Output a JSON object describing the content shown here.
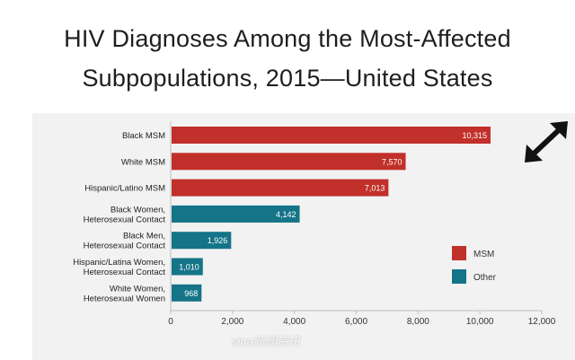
{
  "title_line1": "HIV Diagnoses Among the Most-Affected",
  "title_line2": "Subpopulations, 2015—United States",
  "colors": {
    "msm": "#c1302a",
    "other": "#157488",
    "panel": "#f2f2f2"
  },
  "icons": {
    "expand": "expand-arrows-icon"
  },
  "watermark": "sina新闻资讯",
  "chart_data": {
    "type": "bar",
    "orientation": "horizontal",
    "title": "HIV Diagnoses Among the Most-Affected Subpopulations, 2015—United States",
    "xlabel": "",
    "ylabel": "",
    "xlim": [
      0,
      12000
    ],
    "x_ticks": [
      0,
      2000,
      4000,
      6000,
      8000,
      10000,
      12000
    ],
    "x_tick_labels": [
      "0",
      "2,000",
      "4,000",
      "6,000",
      "8,000",
      "10,000",
      "12,000"
    ],
    "grid": false,
    "legend_position": "right",
    "legend": [
      {
        "name": "MSM",
        "color": "#c1302a"
      },
      {
        "name": "Other",
        "color": "#157488"
      }
    ],
    "bars": [
      {
        "category": [
          "Black MSM"
        ],
        "value": 10315,
        "label": "10,315",
        "group": "MSM"
      },
      {
        "category": [
          "White MSM"
        ],
        "value": 7570,
        "label": "7,570",
        "group": "MSM"
      },
      {
        "category": [
          "Hispanic/Latino MSM"
        ],
        "value": 7013,
        "label": "7,013",
        "group": "MSM"
      },
      {
        "category": [
          "Black Women,",
          "Heterosexual Contact"
        ],
        "value": 4142,
        "label": "4,142",
        "group": "Other"
      },
      {
        "category": [
          "Black Men,",
          "Heterosexual Contact"
        ],
        "value": 1926,
        "label": "1,926",
        "group": "Other"
      },
      {
        "category": [
          "Hispanic/Latina Women,",
          "Heterosexual Contact"
        ],
        "value": 1010,
        "label": "1,010",
        "group": "Other"
      },
      {
        "category": [
          "White Women,",
          "Heterosexual Women"
        ],
        "value": 968,
        "label": "968",
        "group": "Other"
      }
    ]
  }
}
